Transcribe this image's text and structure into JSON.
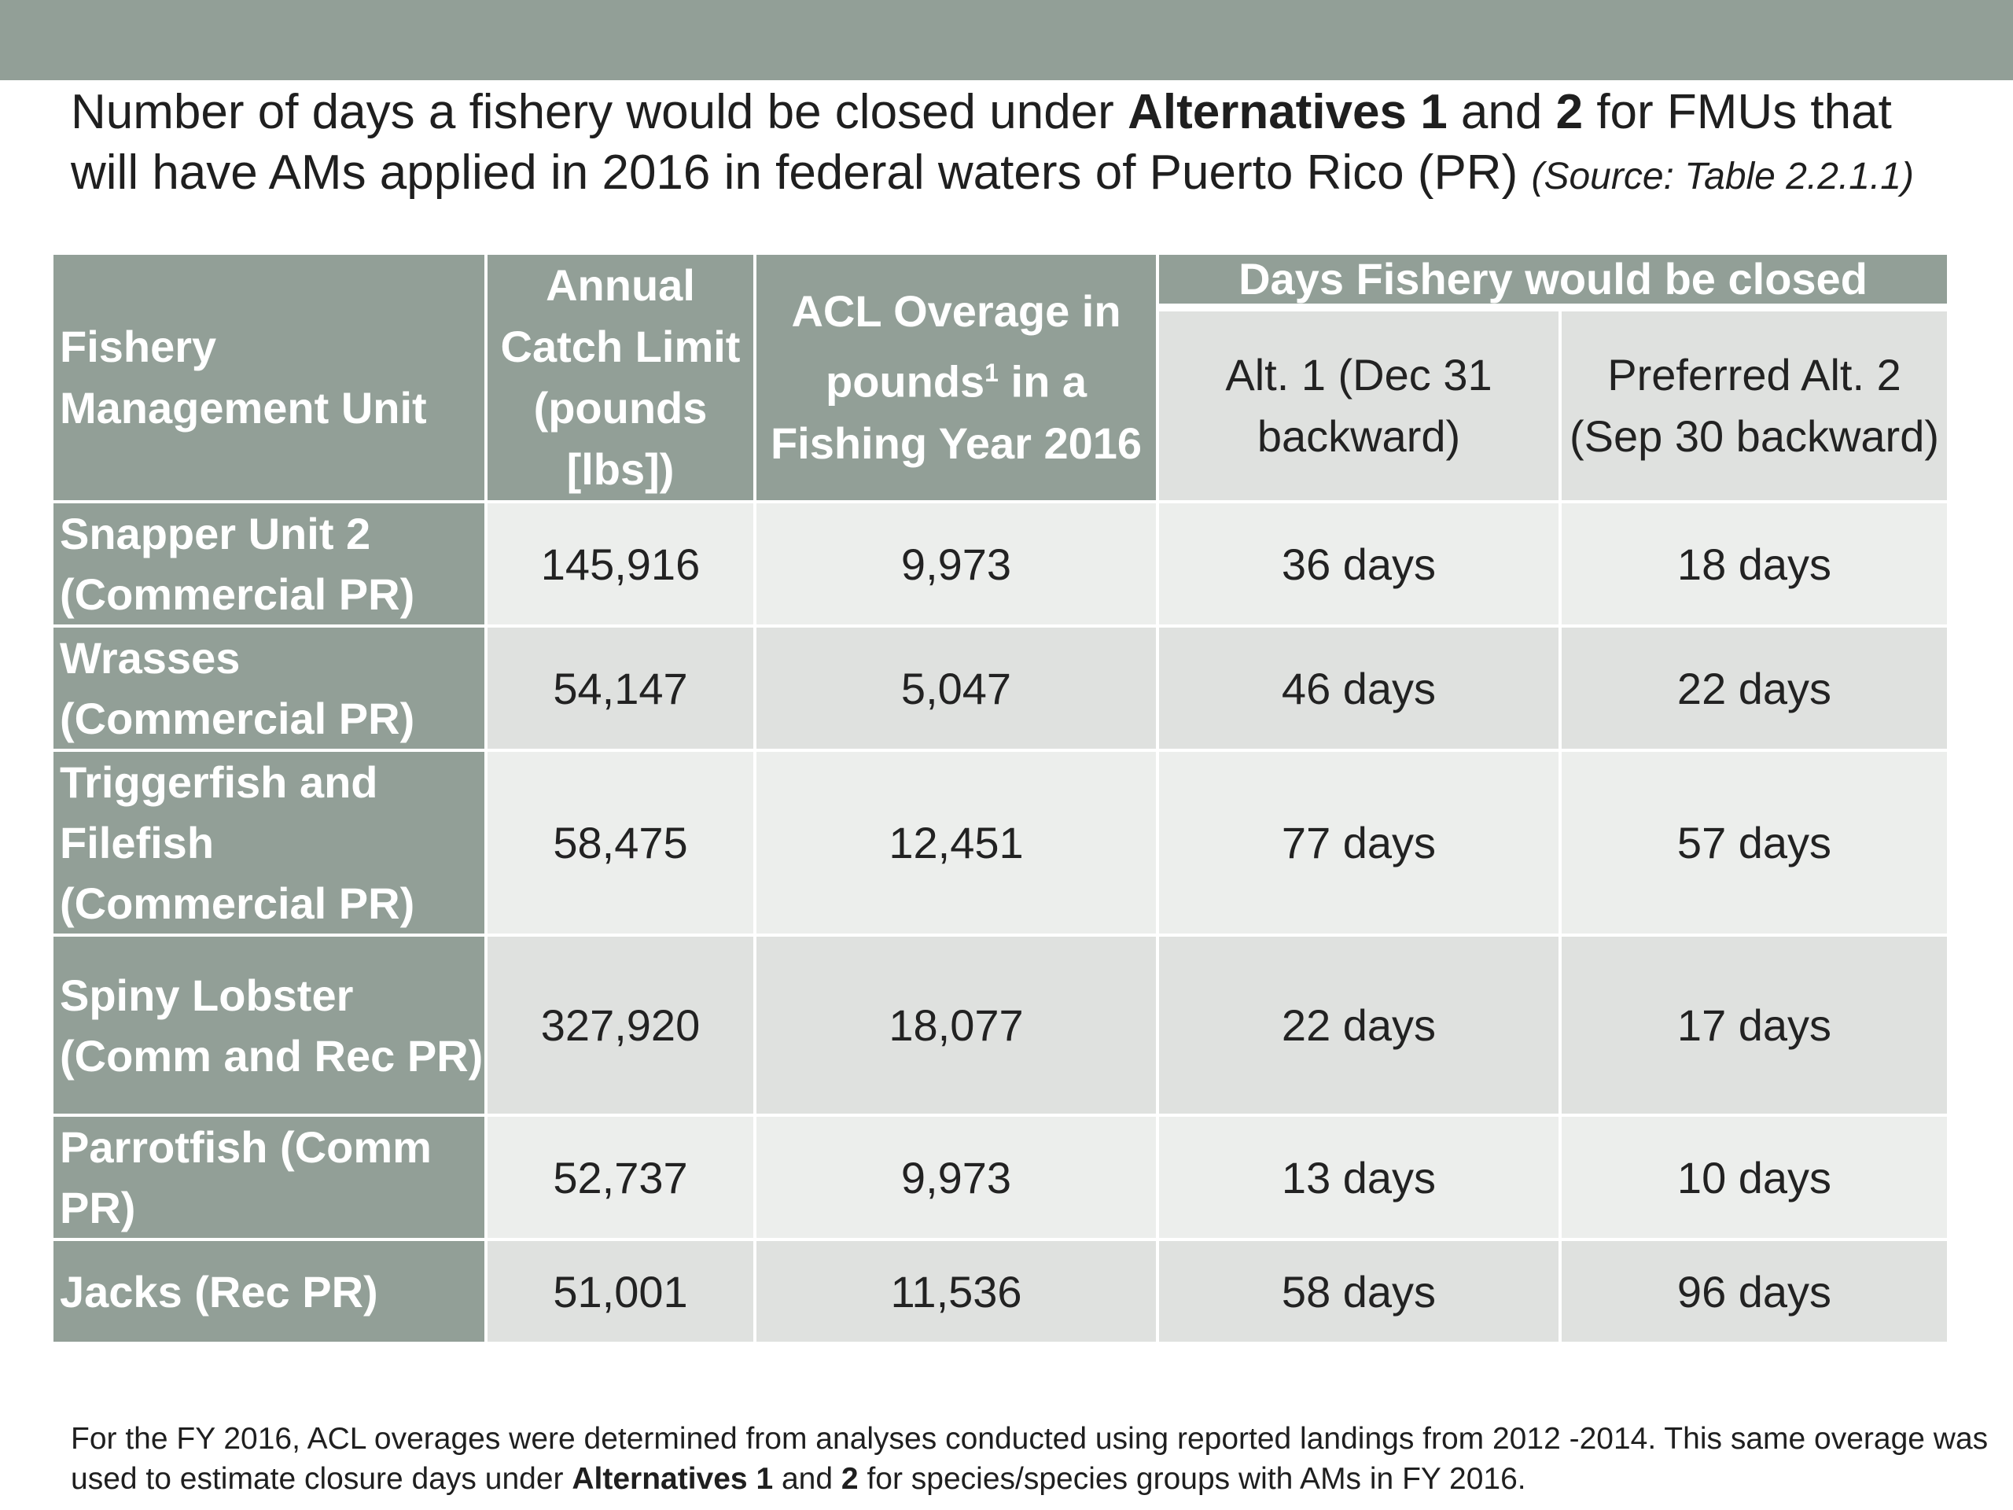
{
  "title": {
    "part1": "Number of days a fishery would be closed under ",
    "bold1": "Alternatives 1",
    "part2": " and ",
    "bold2": "2",
    "part3": " for FMUs that will have AMs applied in 2016 in federal waters of Puerto Rico (PR) ",
    "source": "(Source: Table 2.2.1.1)"
  },
  "table": {
    "headers": {
      "fmu": "Fishery Management Unit",
      "acl": "Annual Catch Limit (pounds [lbs])",
      "overage_pre": "ACL Overage in pounds",
      "overage_sup": "1",
      "overage_post": " in a Fishing Year 2016",
      "days_group": "Days Fishery would be closed",
      "alt1": "Alt. 1 (Dec 31 backward)",
      "alt2": "Preferred Alt. 2 (Sep 30 backward)"
    },
    "rows": [
      {
        "fmu": "Snapper Unit 2 (Commercial PR)",
        "acl": "145,916",
        "overage": "9,973",
        "alt1": "36 days",
        "alt2": "18 days"
      },
      {
        "fmu": "Wrasses (Commercial PR)",
        "acl": "54,147",
        "overage": "5,047",
        "alt1": "46 days",
        "alt2": "22 days"
      },
      {
        "fmu": "Triggerfish and Filefish (Commercial PR)",
        "acl": "58,475",
        "overage": "12,451",
        "alt1": "77 days",
        "alt2": "57 days"
      },
      {
        "fmu": "Spiny Lobster (Comm and Rec PR)",
        "acl": "327,920",
        "overage": "18,077",
        "alt1": "22 days",
        "alt2": "17 days"
      },
      {
        "fmu": "Parrotfish (Comm PR)",
        "acl": "52,737",
        "overage": "9,973",
        "alt1": "13 days",
        "alt2": "10 days"
      },
      {
        "fmu": "Jacks (Rec PR)",
        "acl": "51,001",
        "overage": "11,536",
        "alt1": "58 days",
        "alt2": "96 days"
      }
    ]
  },
  "footnote": {
    "part1": "For the FY 2016, ACL overages were determined from analyses conducted using reported landings from 2012 -2014.  This same overage was used to estimate closure days under ",
    "bold1": "Alternatives 1",
    "part2": " and ",
    "bold2": "2",
    "part3": " for species/species groups with AMs in FY 2016."
  },
  "colors": {
    "header_bg": "#929f97",
    "row_light": "#eceeec",
    "row_dark": "#dfe1df"
  }
}
